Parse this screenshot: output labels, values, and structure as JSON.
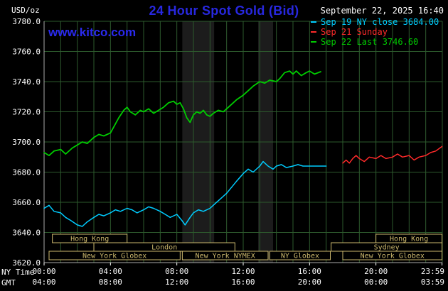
{
  "colors": {
    "background": "#000000",
    "title_blue": "#2828e0",
    "watermark_blue": "#2a2aee",
    "grid": "#2d5a2d",
    "axis_text": "#ffffff",
    "axis_line": "#aaaaaa",
    "session": "#cdb96e",
    "band": "#1c1c1c"
  },
  "header": {
    "units_label": "USD/oz",
    "title": "24 Hour Spot Gold (Bid)",
    "datetime": "September 22, 2025 16:40",
    "watermark": "www.kitco.com",
    "legend": [
      {
        "id": "sep19",
        "label": "Sep 19 NY close 3684.00",
        "color": "#00ccff"
      },
      {
        "id": "sep21",
        "label": "Sep 21 Sunday",
        "color": "#ff2a2a"
      },
      {
        "id": "sep22",
        "label": "Sep 22 Last 3746.60",
        "color": "#00cc00"
      }
    ]
  },
  "axes": {
    "ny_time_label": "NY Time",
    "gmt_label": "GMT",
    "y_ticks": [
      "3780.0",
      "3760.0",
      "3740.0",
      "3720.0",
      "3700.0",
      "3680.0",
      "3660.0",
      "3640.0",
      "3620.0"
    ],
    "x_ticks": [
      {
        "h": 0,
        "ny": "00:00",
        "gmt": "04:00"
      },
      {
        "h": 4,
        "ny": "04:00",
        "gmt": "08:00"
      },
      {
        "h": 8,
        "ny": "08:00",
        "gmt": "12:00"
      },
      {
        "h": 12,
        "ny": "12:00",
        "gmt": "16:00"
      },
      {
        "h": 16,
        "ny": "16:00",
        "gmt": "20:00"
      },
      {
        "h": 20,
        "ny": "20:00",
        "gmt": "00:00"
      },
      {
        "h": 23.983,
        "ny": "23:59",
        "gmt": "03:59"
      }
    ]
  },
  "chart_data": {
    "type": "line",
    "title": "24 Hour Spot Gold (Bid)",
    "ylabel": "USD/oz",
    "x_unit": "hours, NY time",
    "xlim": [
      0,
      24
    ],
    "ylim": [
      3620,
      3780
    ],
    "y_gridline_step": 20,
    "x_gridline_step_hours": 1,
    "legend_position": "top-right",
    "series": [
      {
        "id": "sep19-friday",
        "name": "Sep 19 NY close 3684.00",
        "color": "#00ccff",
        "width": 1.5,
        "points": [
          [
            0,
            3656
          ],
          [
            0.3,
            3658
          ],
          [
            0.6,
            3654
          ],
          [
            1,
            3653
          ],
          [
            1.3,
            3650
          ],
          [
            1.6,
            3648
          ],
          [
            2,
            3645
          ],
          [
            2.3,
            3644
          ],
          [
            2.6,
            3647
          ],
          [
            3,
            3650
          ],
          [
            3.3,
            3652
          ],
          [
            3.6,
            3651
          ],
          [
            4,
            3653
          ],
          [
            4.3,
            3655
          ],
          [
            4.6,
            3654
          ],
          [
            5,
            3656
          ],
          [
            5.3,
            3655
          ],
          [
            5.6,
            3653
          ],
          [
            6,
            3655
          ],
          [
            6.3,
            3657
          ],
          [
            6.6,
            3656
          ],
          [
            7,
            3654
          ],
          [
            7.3,
            3652
          ],
          [
            7.6,
            3650
          ],
          [
            8,
            3652
          ],
          [
            8.3,
            3648
          ],
          [
            8.5,
            3645
          ],
          [
            8.8,
            3650
          ],
          [
            9,
            3653
          ],
          [
            9.3,
            3655
          ],
          [
            9.6,
            3654
          ],
          [
            10,
            3656
          ],
          [
            10.3,
            3659
          ],
          [
            10.6,
            3662
          ],
          [
            11,
            3666
          ],
          [
            11.3,
            3670
          ],
          [
            11.6,
            3674
          ],
          [
            12,
            3679
          ],
          [
            12.3,
            3682
          ],
          [
            12.6,
            3680
          ],
          [
            13,
            3684
          ],
          [
            13.2,
            3687
          ],
          [
            13.5,
            3684
          ],
          [
            13.8,
            3682
          ],
          [
            14,
            3684
          ],
          [
            14.3,
            3685
          ],
          [
            14.6,
            3683
          ],
          [
            15,
            3684
          ],
          [
            15.3,
            3685
          ],
          [
            15.6,
            3684
          ],
          [
            16,
            3684
          ],
          [
            16.5,
            3684
          ],
          [
            17,
            3684
          ]
        ]
      },
      {
        "id": "sep21-sunday",
        "name": "Sep 21 Sunday",
        "color": "#ff2a2a",
        "width": 1.5,
        "points": [
          [
            18,
            3686
          ],
          [
            18.2,
            3688
          ],
          [
            18.4,
            3686
          ],
          [
            18.6,
            3689
          ],
          [
            18.8,
            3691
          ],
          [
            19,
            3689
          ],
          [
            19.3,
            3687
          ],
          [
            19.6,
            3690
          ],
          [
            20,
            3689
          ],
          [
            20.3,
            3691
          ],
          [
            20.6,
            3689
          ],
          [
            21,
            3690
          ],
          [
            21.3,
            3692
          ],
          [
            21.6,
            3690
          ],
          [
            22,
            3691
          ],
          [
            22.3,
            3688
          ],
          [
            22.6,
            3690
          ],
          [
            23,
            3691
          ],
          [
            23.3,
            3693
          ],
          [
            23.6,
            3694
          ],
          [
            23.983,
            3697
          ]
        ]
      },
      {
        "id": "sep22-today",
        "name": "Sep 22 Last 3746.60",
        "color": "#00cc00",
        "width": 1.8,
        "points": [
          [
            0,
            3693
          ],
          [
            0.3,
            3691
          ],
          [
            0.6,
            3694
          ],
          [
            1,
            3695
          ],
          [
            1.3,
            3692
          ],
          [
            1.7,
            3696
          ],
          [
            2,
            3698
          ],
          [
            2.3,
            3700
          ],
          [
            2.6,
            3699
          ],
          [
            3,
            3703
          ],
          [
            3.3,
            3705
          ],
          [
            3.6,
            3704
          ],
          [
            4,
            3706
          ],
          [
            4.2,
            3710
          ],
          [
            4.5,
            3716
          ],
          [
            4.8,
            3721
          ],
          [
            5,
            3723
          ],
          [
            5.2,
            3720
          ],
          [
            5.5,
            3718
          ],
          [
            5.8,
            3721
          ],
          [
            6,
            3720
          ],
          [
            6.3,
            3722
          ],
          [
            6.6,
            3719
          ],
          [
            6.9,
            3721
          ],
          [
            7.2,
            3723
          ],
          [
            7.5,
            3726
          ],
          [
            7.8,
            3727
          ],
          [
            8,
            3725
          ],
          [
            8.2,
            3726
          ],
          [
            8.4,
            3722
          ],
          [
            8.6,
            3716
          ],
          [
            8.8,
            3713
          ],
          [
            9,
            3718
          ],
          [
            9.2,
            3720
          ],
          [
            9.4,
            3719
          ],
          [
            9.6,
            3721
          ],
          [
            9.8,
            3718
          ],
          [
            10,
            3717
          ],
          [
            10.2,
            3719
          ],
          [
            10.5,
            3721
          ],
          [
            10.8,
            3720
          ],
          [
            11,
            3722
          ],
          [
            11.3,
            3725
          ],
          [
            11.6,
            3728
          ],
          [
            12,
            3731
          ],
          [
            12.3,
            3734
          ],
          [
            12.6,
            3737
          ],
          [
            13,
            3740
          ],
          [
            13.3,
            3739
          ],
          [
            13.6,
            3741
          ],
          [
            14,
            3740
          ],
          [
            14.2,
            3742
          ],
          [
            14.5,
            3746
          ],
          [
            14.8,
            3747
          ],
          [
            15,
            3745
          ],
          [
            15.2,
            3747
          ],
          [
            15.5,
            3744
          ],
          [
            15.8,
            3746
          ],
          [
            16,
            3747
          ],
          [
            16.3,
            3745
          ],
          [
            16.67,
            3746.6
          ]
        ]
      }
    ],
    "bands": [
      {
        "x0": 8.33,
        "x1": 10.25
      },
      {
        "x0": 12.9,
        "x1": 13.8
      }
    ],
    "sessions": [
      {
        "row": 0,
        "x0": 0.5,
        "x1": 5.0,
        "label": "Hong Kong"
      },
      {
        "row": 0,
        "x0": 20.0,
        "x1": 23.983,
        "label": "Hong Kong"
      },
      {
        "row": 1,
        "x0": 3.0,
        "x1": 11.5,
        "label": "London"
      },
      {
        "row": 1,
        "x0": 17.3,
        "x1": 23.983,
        "label": "Sydney"
      },
      {
        "row": 2,
        "x0": 0.3,
        "x1": 8.2,
        "label": "New York Globex"
      },
      {
        "row": 2,
        "x0": 8.33,
        "x1": 13.5,
        "label": "New York NYMEX"
      },
      {
        "row": 2,
        "x0": 13.6,
        "x1": 17.25,
        "label": "NY Globex"
      },
      {
        "row": 2,
        "x0": 18.0,
        "x1": 23.983,
        "label": "New York Globex"
      }
    ]
  }
}
